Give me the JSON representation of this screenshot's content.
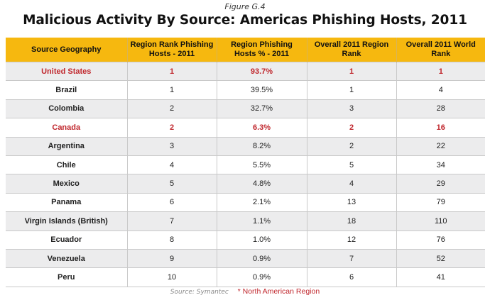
{
  "figure_label": "Figure G.4",
  "title": "Malicious Activity By Source: Americas Phishing Hosts, 2011",
  "table": {
    "headers": [
      "Source Geography",
      "Region Rank Phishing Hosts - 2011",
      "Region Phishing Hosts % - 2011",
      "Overall 2011 Region Rank",
      "Overall 2011 World Rank"
    ],
    "rows": [
      {
        "geo": "United States",
        "region_rank": "1",
        "pct": "93.7%",
        "overall_region_rank": "1",
        "world_rank": "1",
        "north_american": true
      },
      {
        "geo": "Brazil",
        "region_rank": "1",
        "pct": "39.5%",
        "overall_region_rank": "1",
        "world_rank": "4",
        "north_american": false
      },
      {
        "geo": "Colombia",
        "region_rank": "2",
        "pct": "32.7%",
        "overall_region_rank": "3",
        "world_rank": "28",
        "north_american": false
      },
      {
        "geo": "Canada",
        "region_rank": "2",
        "pct": "6.3%",
        "overall_region_rank": "2",
        "world_rank": "16",
        "north_american": true
      },
      {
        "geo": "Argentina",
        "region_rank": "3",
        "pct": "8.2%",
        "overall_region_rank": "2",
        "world_rank": "22",
        "north_american": false
      },
      {
        "geo": "Chile",
        "region_rank": "4",
        "pct": "5.5%",
        "overall_region_rank": "5",
        "world_rank": "34",
        "north_american": false
      },
      {
        "geo": "Mexico",
        "region_rank": "5",
        "pct": "4.8%",
        "overall_region_rank": "4",
        "world_rank": "29",
        "north_american": false
      },
      {
        "geo": "Panama",
        "region_rank": "6",
        "pct": "2.1%",
        "overall_region_rank": "13",
        "world_rank": "79",
        "north_american": false
      },
      {
        "geo": "Virgin Islands (British)",
        "region_rank": "7",
        "pct": "1.1%",
        "overall_region_rank": "18",
        "world_rank": "110",
        "north_american": false
      },
      {
        "geo": "Ecuador",
        "region_rank": "8",
        "pct": "1.0%",
        "overall_region_rank": "12",
        "world_rank": "76",
        "north_american": false
      },
      {
        "geo": "Venezuela",
        "region_rank": "9",
        "pct": "0.9%",
        "overall_region_rank": "7",
        "world_rank": "52",
        "north_american": false
      },
      {
        "geo": "Peru",
        "region_rank": "10",
        "pct": "0.9%",
        "overall_region_rank": "6",
        "world_rank": "41",
        "north_american": false
      }
    ]
  },
  "footer": {
    "source": "Source: Symantec",
    "note": "* North American Region"
  },
  "colors": {
    "header_bg": "#f6b80f",
    "highlight_text": "#c0272d",
    "row_alt_bg": "#ececed"
  }
}
